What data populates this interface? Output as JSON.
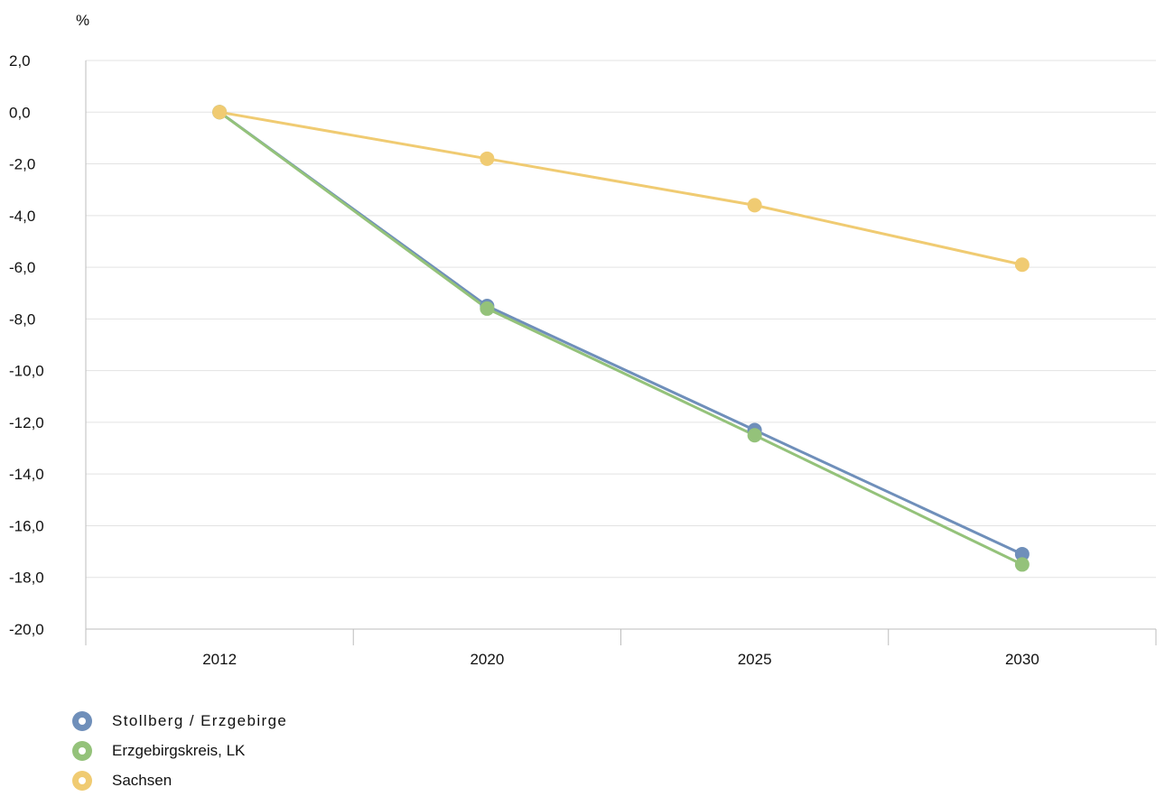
{
  "chart_data": {
    "type": "line",
    "unit_label": "%",
    "categories": [
      "2012",
      "2020",
      "2025",
      "2030"
    ],
    "ylim": [
      -20,
      2
    ],
    "yticks": [
      2,
      0,
      -2,
      -4,
      -6,
      -8,
      -10,
      -12,
      -14,
      -16,
      -18,
      -20
    ],
    "ytick_labels": [
      "2,0",
      "0,0",
      "-2,0",
      "-4,0",
      "-6,0",
      "-8,0",
      "-10,0",
      "-12,0",
      "-14,0",
      "-16,0",
      "-18,0",
      "-20,0"
    ],
    "grid": true,
    "legend_position": "bottom-left",
    "series": [
      {
        "name": "Stollberg / Erzgebirge",
        "color": "#6f8fba",
        "values": [
          0.0,
          -7.5,
          -12.3,
          -17.1
        ]
      },
      {
        "name": "Erzgebirgskreis, LK",
        "color": "#94c27a",
        "values": [
          0.0,
          -7.6,
          -12.5,
          -17.5
        ]
      },
      {
        "name": "Sachsen",
        "color": "#f0cb72",
        "values": [
          0.0,
          -1.8,
          -3.6,
          -5.9
        ]
      }
    ]
  }
}
